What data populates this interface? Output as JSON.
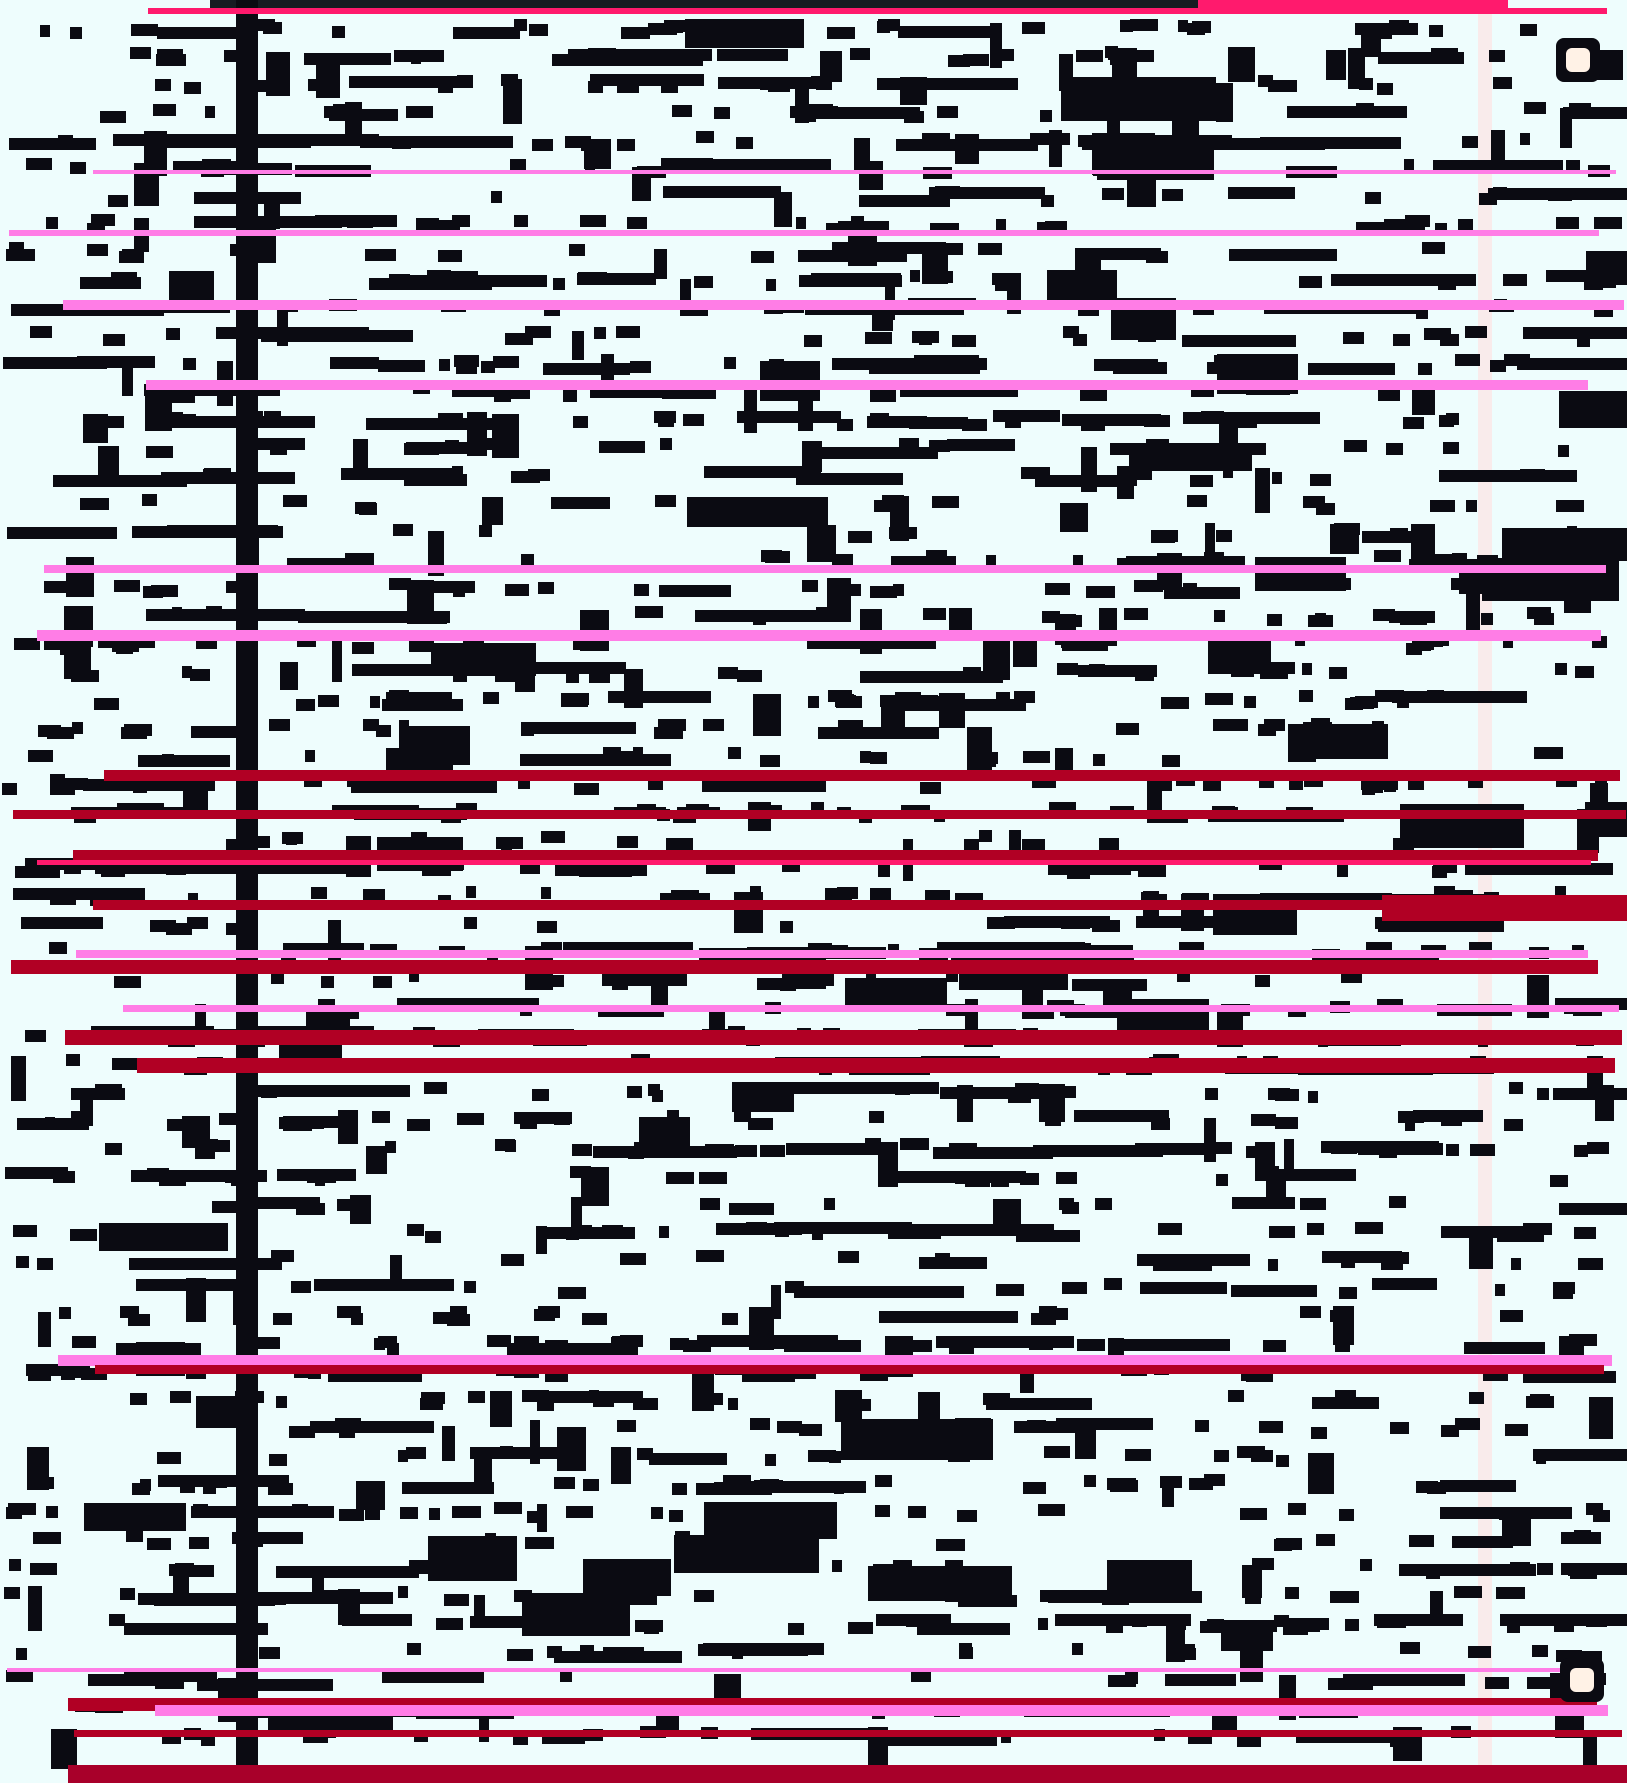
{
  "screen": {
    "title": "",
    "status": "",
    "colors": {
      "background": "#eefdfd",
      "foreground": "#0b0b12",
      "glitch_magenta": "#ff7de6",
      "glitch_red": "#b10024",
      "glitch_pink": "#ff1a6d"
    },
    "icons": [
      "square-icon-top-right",
      "square-icon-bottom-right"
    ]
  }
}
